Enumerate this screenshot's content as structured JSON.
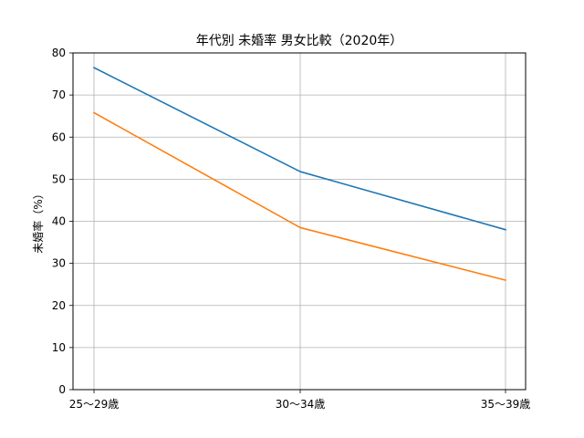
{
  "chart_data": {
    "type": "line",
    "title": "年代別 未婚率 男女比較（2020年）",
    "xlabel": "",
    "ylabel": "未婚率（%）",
    "categories": [
      "25〜29歳",
      "30〜34歳",
      "35〜39歳"
    ],
    "series": [
      {
        "values": [
          76.5,
          51.8,
          38.0
        ],
        "color": "#1f77b4"
      },
      {
        "values": [
          65.8,
          38.5,
          26.0
        ],
        "color": "#ff7f0e"
      }
    ],
    "ylim": [
      0,
      80
    ],
    "yticks": [
      "0",
      "10",
      "20",
      "30",
      "40",
      "50",
      "60",
      "70",
      "80"
    ],
    "grid": true,
    "legend": "none"
  }
}
